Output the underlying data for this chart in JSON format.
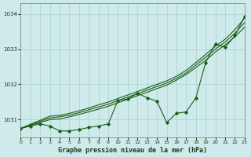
{
  "xlabel": "Graphe pression niveau de la mer (hPa)",
  "bg_color": "#ceeaea",
  "grid_color": "#b0d4d4",
  "line_color": "#1a5e1a",
  "xlim": [
    0,
    23
  ],
  "ylim": [
    1030.5,
    1034.3
  ],
  "yticks": [
    1031,
    1032,
    1033,
    1034
  ],
  "xticks": [
    0,
    1,
    2,
    3,
    4,
    5,
    6,
    7,
    8,
    9,
    10,
    11,
    12,
    13,
    14,
    15,
    16,
    17,
    18,
    19,
    20,
    21,
    22,
    23
  ],
  "hours": [
    0,
    1,
    2,
    3,
    4,
    5,
    6,
    7,
    8,
    9,
    10,
    11,
    12,
    13,
    14,
    15,
    16,
    17,
    18,
    19,
    20,
    21,
    22,
    23
  ],
  "line_main": [
    1030.75,
    1030.82,
    1030.88,
    1030.82,
    1030.68,
    1030.68,
    1030.72,
    1030.78,
    1030.82,
    1030.88,
    1031.55,
    1031.58,
    1031.75,
    1031.62,
    1031.52,
    1030.92,
    1031.18,
    1031.22,
    1031.62,
    1032.62,
    1033.15,
    1033.05,
    1033.38,
    1033.92
  ],
  "line_smooth1": [
    1030.75,
    1030.83,
    1030.92,
    1031.0,
    1031.02,
    1031.08,
    1031.15,
    1031.22,
    1031.3,
    1031.38,
    1031.48,
    1031.58,
    1031.68,
    1031.78,
    1031.88,
    1031.98,
    1032.12,
    1032.28,
    1032.48,
    1032.68,
    1032.92,
    1033.12,
    1033.35,
    1033.62
  ],
  "line_smooth2": [
    1030.75,
    1030.85,
    1030.95,
    1031.05,
    1031.08,
    1031.13,
    1031.2,
    1031.28,
    1031.36,
    1031.44,
    1031.54,
    1031.64,
    1031.74,
    1031.84,
    1031.94,
    1032.04,
    1032.17,
    1032.33,
    1032.55,
    1032.77,
    1033.0,
    1033.2,
    1033.45,
    1033.75
  ],
  "line_smooth3": [
    1030.75,
    1030.87,
    1030.98,
    1031.1,
    1031.12,
    1031.18,
    1031.25,
    1031.33,
    1031.42,
    1031.5,
    1031.6,
    1031.7,
    1031.8,
    1031.9,
    1032.0,
    1032.1,
    1032.23,
    1032.4,
    1032.62,
    1032.85,
    1033.08,
    1033.28,
    1033.55,
    1033.88
  ]
}
